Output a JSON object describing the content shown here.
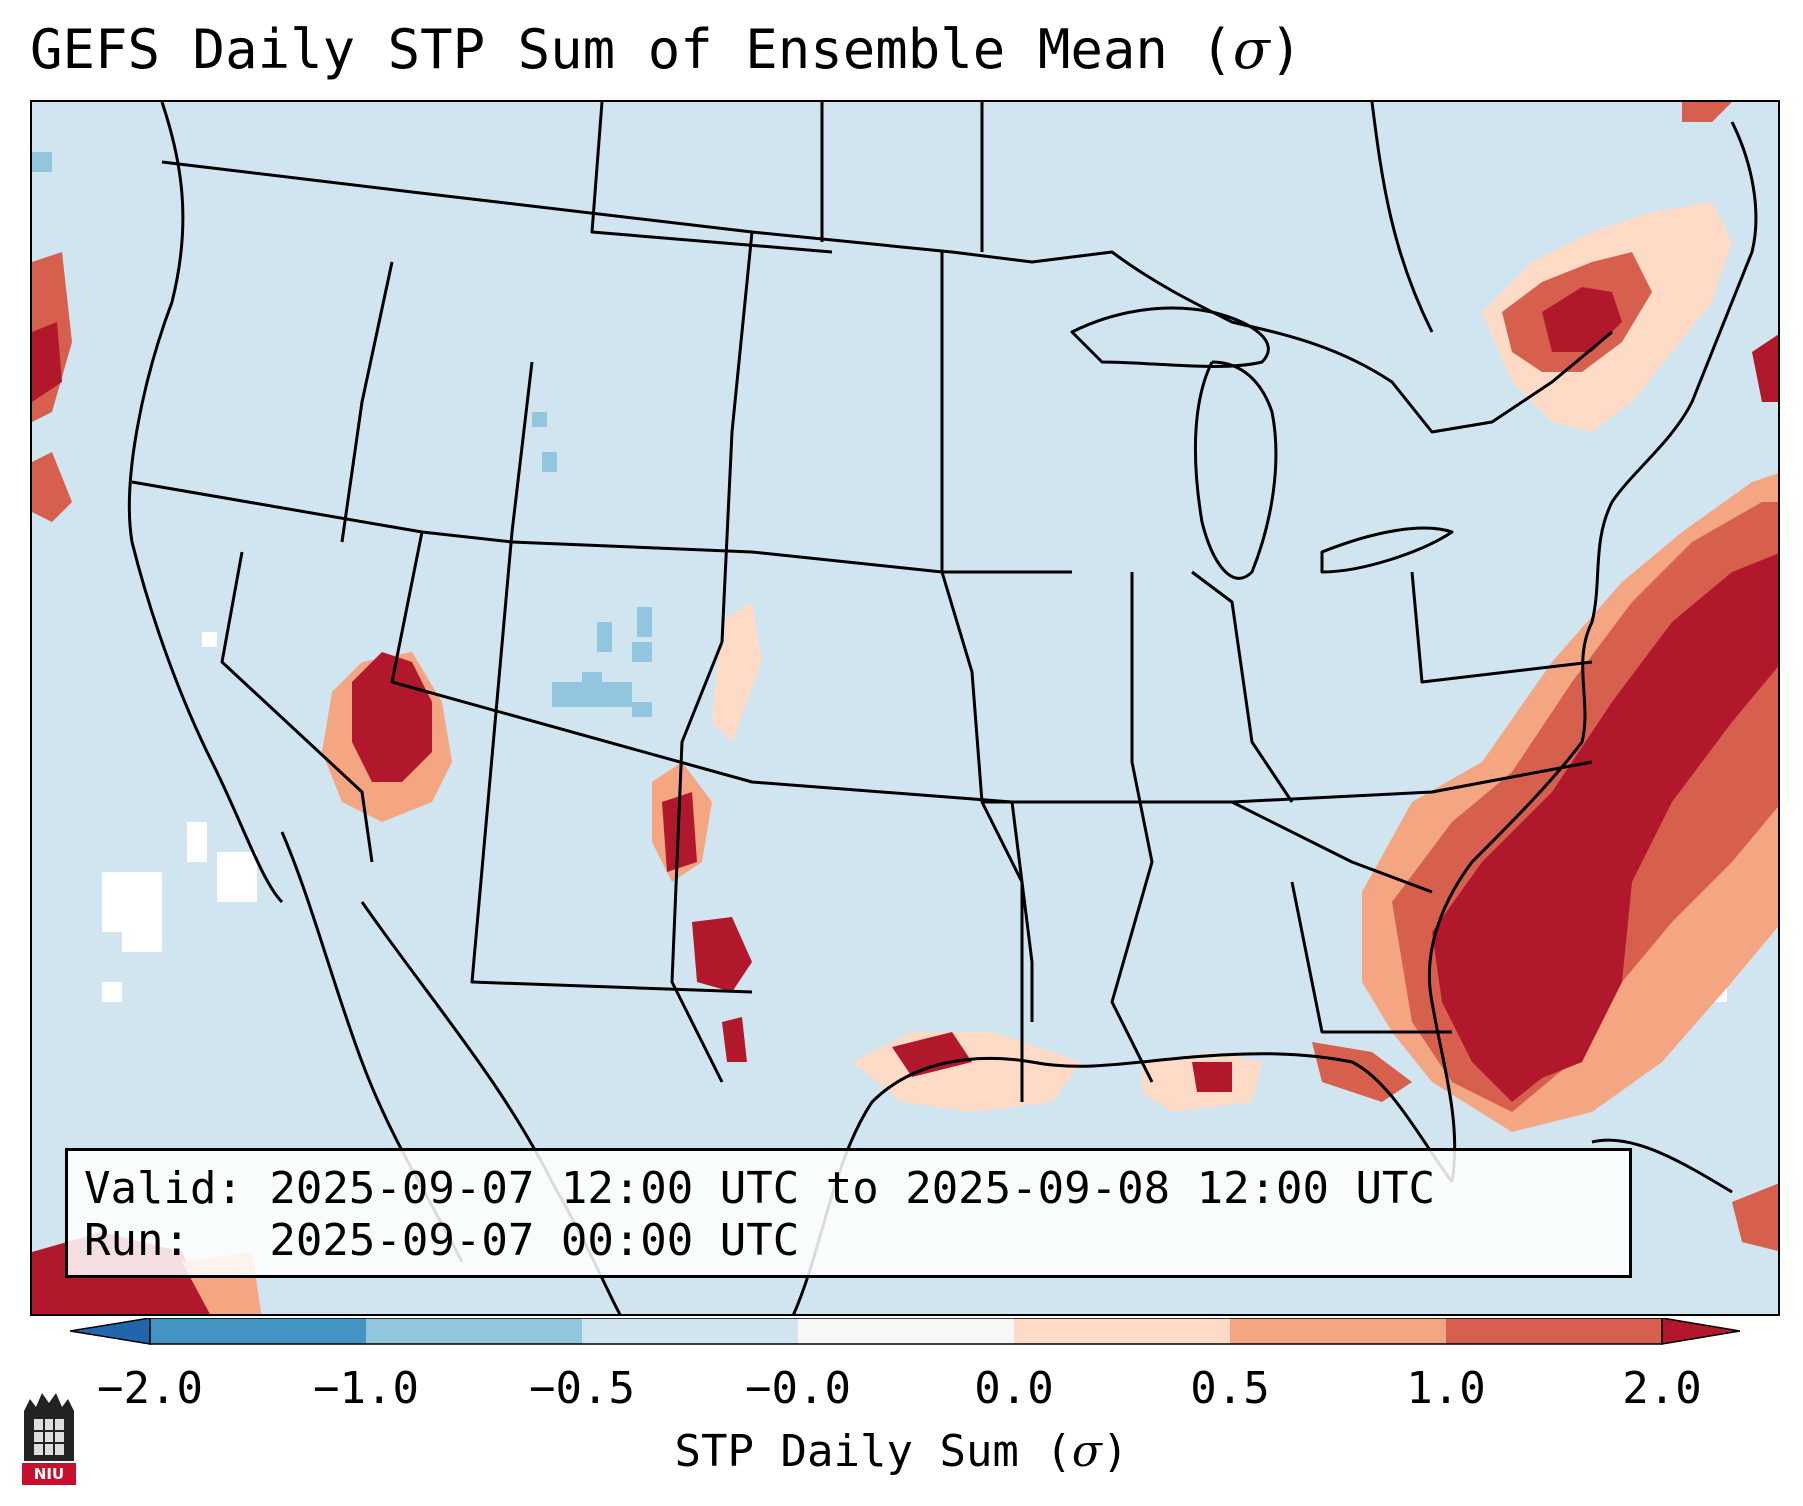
{
  "title": {
    "main": "GEFS Daily STP Sum of Ensemble Mean (",
    "symbol": "σ",
    "close": ")"
  },
  "valid_text": "Valid: 2025-09-07 12:00 UTC to 2025-09-08 12:00 UTC",
  "run_text": "Run:   2025-09-07 00:00 UTC",
  "colorbar": {
    "ticks": [
      "−2.0",
      "−1.0",
      "−0.5",
      "−0.0",
      "0.0",
      "0.5",
      "1.0",
      "2.0"
    ],
    "label_main": "STP Daily Sum (",
    "label_symbol": "σ",
    "label_close": ")",
    "colors": [
      "#4393c3",
      "#92c5de",
      "#d1e5f0",
      "#f7f7f7",
      "#fddbc7",
      "#f4a582",
      "#d6604d",
      "#b2182b"
    ],
    "under_color": "#2166ac",
    "over_color": "#b2182b"
  },
  "logo": {
    "text": "NIU",
    "color": "#c8102e"
  },
  "map": {
    "background": "#d1e5f0",
    "no_data_color": "#ffffff"
  }
}
